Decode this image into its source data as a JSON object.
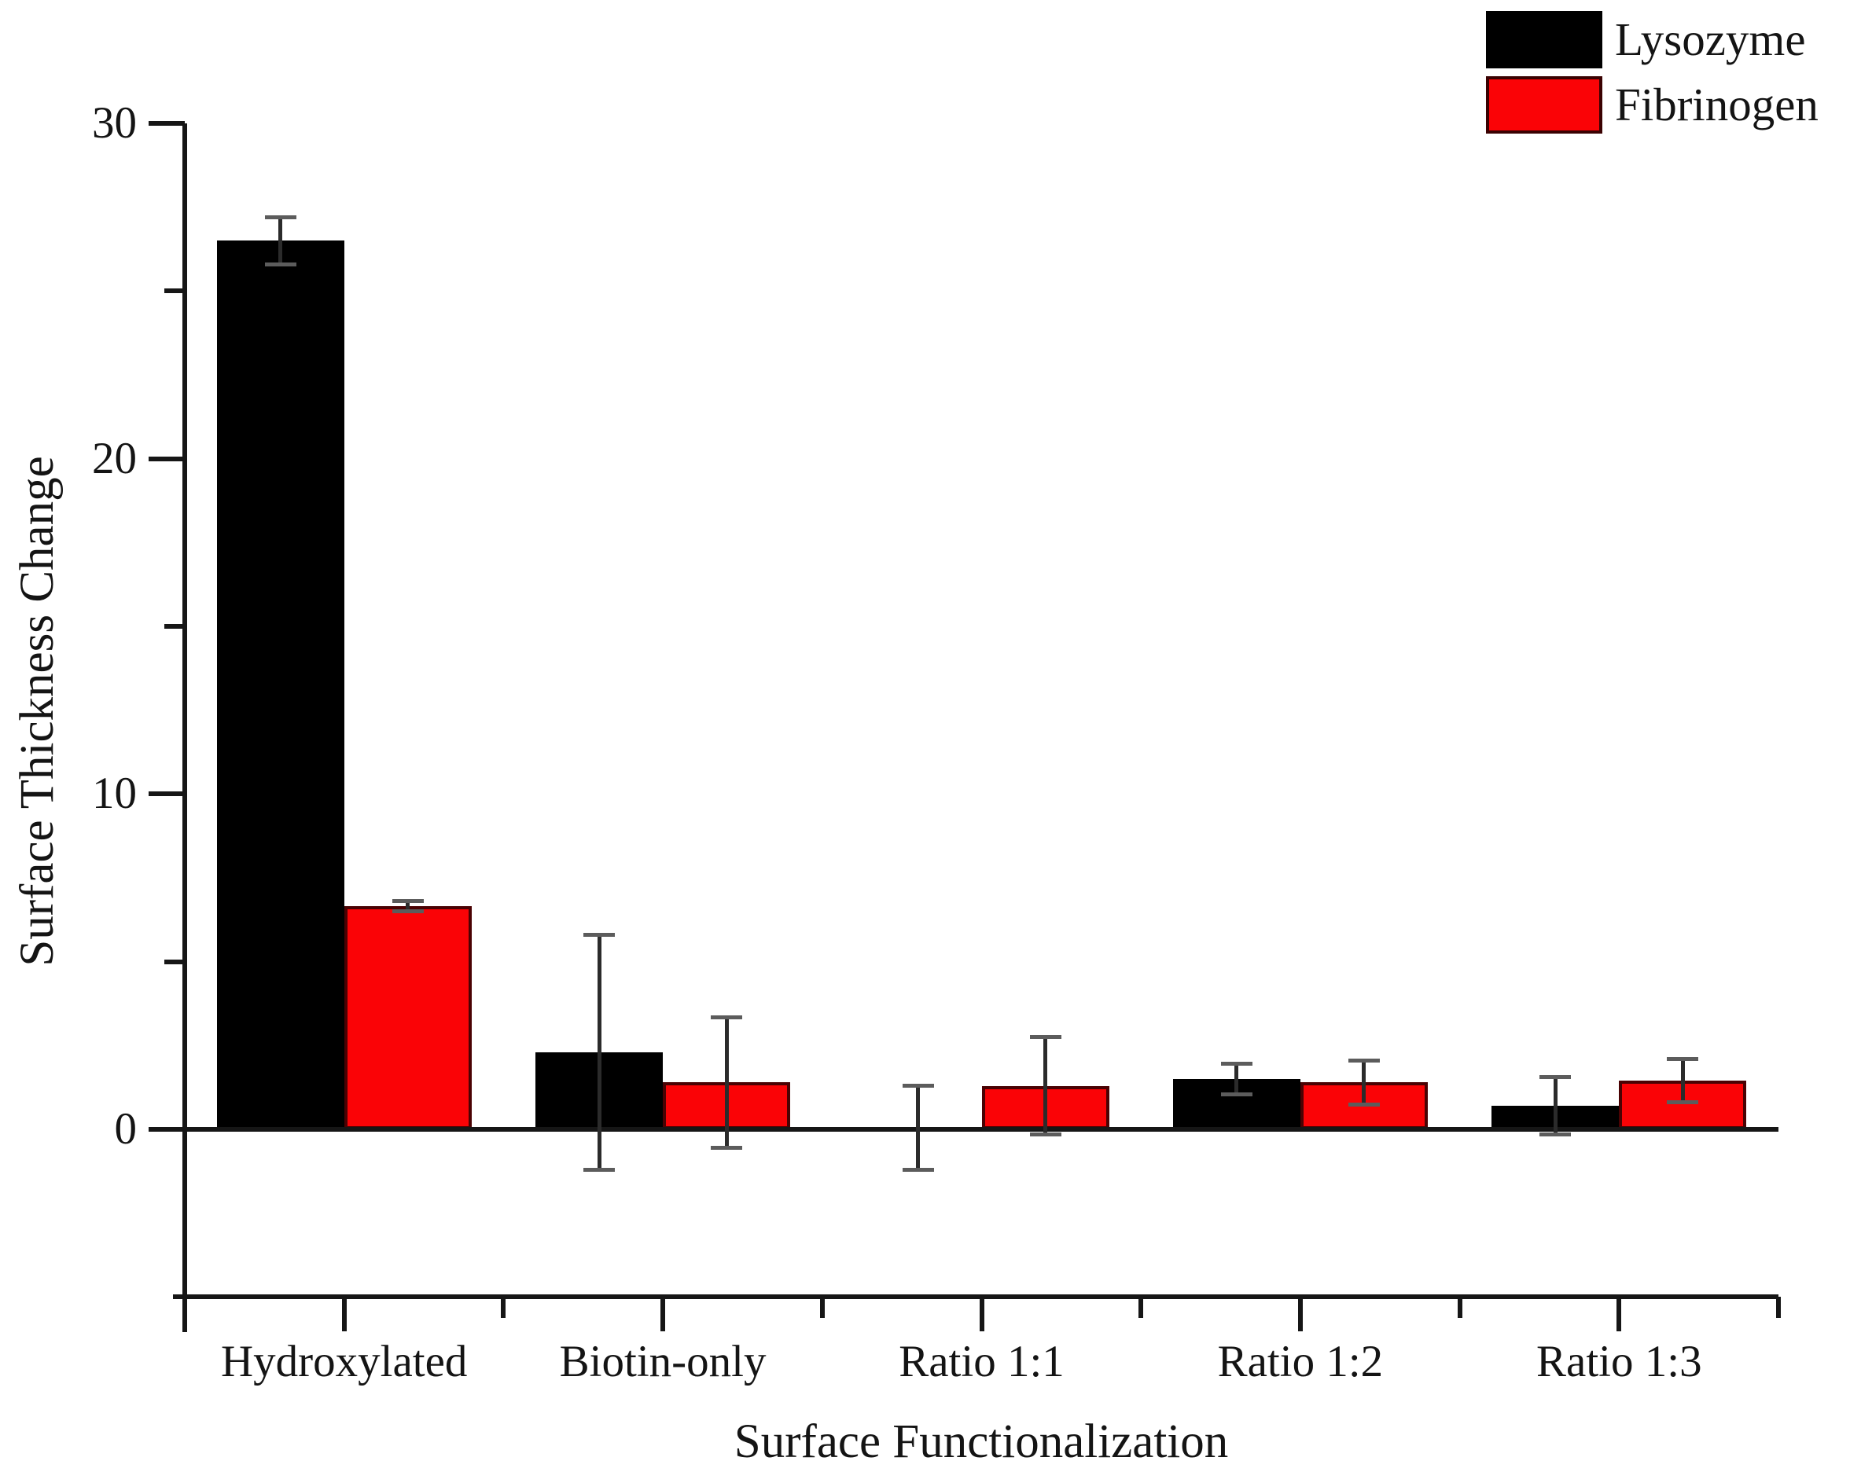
{
  "chart_data": {
    "type": "bar",
    "title": "",
    "xlabel": "Surface Functionalization",
    "ylabel": "Surface Thickness Change",
    "categories": [
      "Hydroxylated",
      "Biotin-only",
      "Ratio 1:1",
      "Ratio 1:2",
      "Ratio 1:3"
    ],
    "series": [
      {
        "name": "Lysozyme",
        "color": "#000000",
        "border_color": "#000000",
        "values": [
          26.5,
          2.3,
          0.05,
          1.5,
          0.7
        ],
        "errors": [
          0.7,
          3.5,
          1.25,
          0.45,
          0.85
        ]
      },
      {
        "name": "Fibrinogen",
        "color": "#fa0306",
        "border_color": "#4a0203",
        "values": [
          6.65,
          1.4,
          1.3,
          1.4,
          1.45
        ],
        "errors": [
          0.15,
          1.95,
          1.45,
          0.65,
          0.65
        ]
      }
    ],
    "y_axis": {
      "min": -5,
      "max": 30,
      "major_ticks": [
        0,
        10,
        20,
        30
      ],
      "minor_ticks": [
        5,
        15,
        25
      ],
      "tick_labels": [
        "0",
        "10",
        "20",
        "30"
      ]
    },
    "legend": {
      "position": "top-right",
      "items": [
        "Lysozyme",
        "Fibrinogen"
      ]
    },
    "grid": false,
    "error_bars": true
  }
}
